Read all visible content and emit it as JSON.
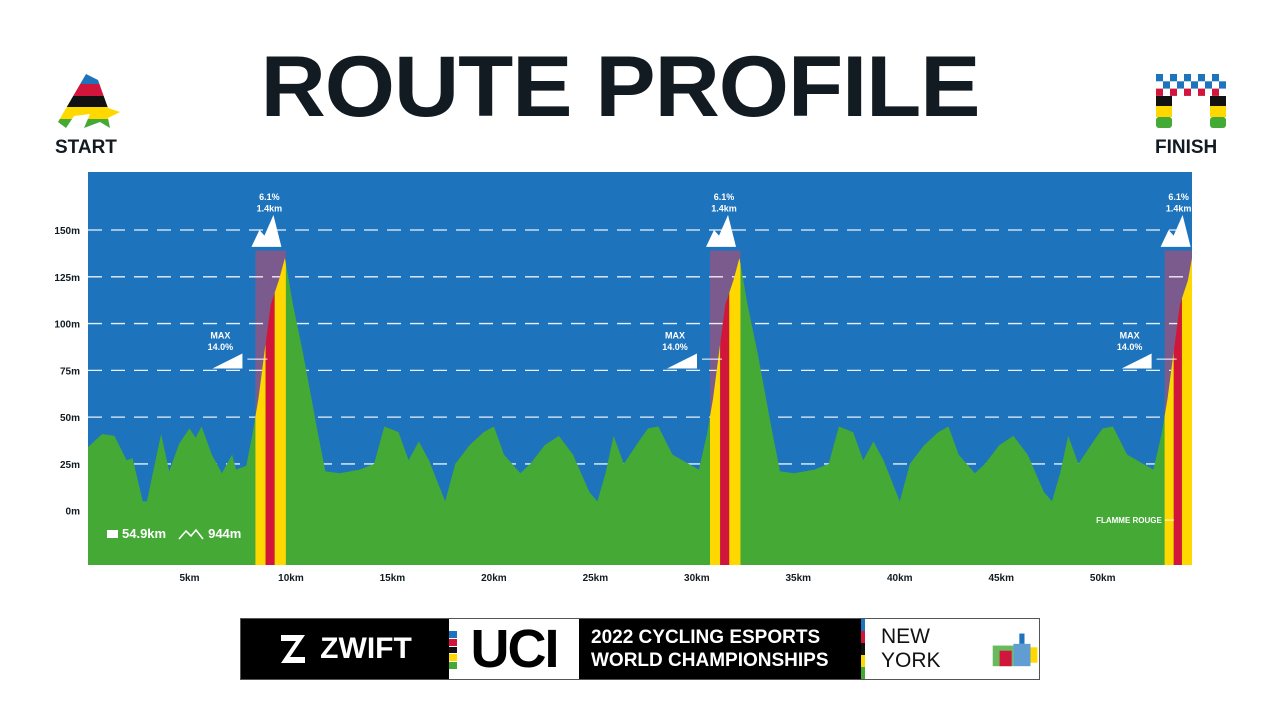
{
  "header": {
    "title": "ROUTE PROFILE",
    "start_label": "START",
    "finish_label": "FINISH"
  },
  "stats": {
    "distance": "54.9km",
    "elevation": "944m",
    "distance_icon": "route-distance-icon",
    "elevation_icon": "mountain-outline-icon"
  },
  "colors": {
    "sky": "#1e74bc",
    "terrain": "#44a935",
    "climb_yellow": "#ffd800",
    "climb_red": "#d2153a",
    "climb_zone": "#7b5b8e",
    "text": "#121b22"
  },
  "chart_data": {
    "type": "area",
    "xlabel": "",
    "ylabel": "",
    "xlim": [
      0,
      54.4
    ],
    "ylim": [
      -29,
      181
    ],
    "grid": true,
    "x_ticks": [
      5,
      10,
      15,
      20,
      25,
      30,
      35,
      40,
      45,
      50
    ],
    "x_tick_labels": [
      "5km",
      "10km",
      "15km",
      "20km",
      "25km",
      "30km",
      "35km",
      "40km",
      "45km",
      "50km"
    ],
    "y_ticks": [
      0,
      25,
      50,
      75,
      100,
      125,
      150
    ],
    "y_tick_labels": [
      "0m",
      "25m",
      "50m",
      "75m",
      "100m",
      "125m",
      "150m"
    ],
    "profile": [
      [
        0,
        34
      ],
      [
        0.3,
        37
      ],
      [
        0.7,
        41
      ],
      [
        1.3,
        40
      ],
      [
        1.9,
        27
      ],
      [
        2.2,
        28
      ],
      [
        2.7,
        5
      ],
      [
        2.9,
        5
      ],
      [
        3.6,
        41
      ],
      [
        4.0,
        21
      ],
      [
        4.5,
        36
      ],
      [
        5.0,
        44
      ],
      [
        5.3,
        39
      ],
      [
        5.6,
        45
      ],
      [
        6.1,
        30
      ],
      [
        6.6,
        20
      ],
      [
        7.1,
        30
      ],
      [
        7.3,
        22
      ],
      [
        7.8,
        24
      ],
      [
        8.1,
        41
      ],
      [
        8.4,
        60
      ],
      [
        9.0,
        110
      ],
      [
        9.4,
        123
      ],
      [
        9.7,
        135
      ],
      [
        10.1,
        110
      ],
      [
        10.6,
        84
      ],
      [
        11.3,
        43
      ],
      [
        11.7,
        21
      ],
      [
        12.4,
        20
      ],
      [
        13.4,
        22
      ],
      [
        14.1,
        25
      ],
      [
        14.6,
        45
      ],
      [
        15.3,
        42
      ],
      [
        15.8,
        27
      ],
      [
        16.3,
        37
      ],
      [
        16.8,
        27
      ],
      [
        17.6,
        5
      ],
      [
        18.1,
        25
      ],
      [
        18.8,
        35
      ],
      [
        19.5,
        42
      ],
      [
        20.0,
        45
      ],
      [
        20.5,
        30
      ],
      [
        21.3,
        20
      ],
      [
        21.8,
        25
      ],
      [
        22.5,
        35
      ],
      [
        23.2,
        40
      ],
      [
        23.9,
        30
      ],
      [
        24.7,
        10
      ],
      [
        25.1,
        5
      ],
      [
        25.5,
        20
      ],
      [
        25.9,
        40
      ],
      [
        26.4,
        25
      ],
      [
        27.2,
        38
      ],
      [
        27.6,
        44
      ],
      [
        28.1,
        45
      ],
      [
        28.8,
        30
      ],
      [
        29.6,
        25
      ],
      [
        30.1,
        22
      ],
      [
        30.5,
        41
      ],
      [
        30.8,
        60
      ],
      [
        31.4,
        110
      ],
      [
        31.8,
        123
      ],
      [
        32.1,
        135
      ],
      [
        32.5,
        110
      ],
      [
        33.0,
        84
      ],
      [
        33.7,
        43
      ],
      [
        34.1,
        21
      ],
      [
        34.8,
        20
      ],
      [
        35.8,
        22
      ],
      [
        36.5,
        25
      ],
      [
        37.0,
        45
      ],
      [
        37.7,
        42
      ],
      [
        38.2,
        27
      ],
      [
        38.7,
        37
      ],
      [
        39.2,
        27
      ],
      [
        40.0,
        5
      ],
      [
        40.5,
        25
      ],
      [
        41.2,
        35
      ],
      [
        41.9,
        42
      ],
      [
        42.4,
        45
      ],
      [
        42.9,
        30
      ],
      [
        43.7,
        20
      ],
      [
        44.2,
        25
      ],
      [
        44.9,
        35
      ],
      [
        45.6,
        40
      ],
      [
        46.3,
        30
      ],
      [
        47.1,
        10
      ],
      [
        47.5,
        5
      ],
      [
        47.9,
        20
      ],
      [
        48.3,
        40
      ],
      [
        48.8,
        25
      ],
      [
        49.6,
        38
      ],
      [
        50.0,
        44
      ],
      [
        50.5,
        45
      ],
      [
        51.2,
        30
      ],
      [
        52.0,
        25
      ],
      [
        52.5,
        22
      ],
      [
        52.9,
        41
      ],
      [
        53.2,
        60
      ],
      [
        53.8,
        110
      ],
      [
        54.2,
        123
      ],
      [
        54.4,
        135
      ]
    ],
    "climbs": [
      {
        "start_km": 8.25,
        "end_km": 9.75,
        "gradient": "6.1%",
        "length": "1.4km",
        "max_label": "MAX",
        "max_gradient": "14.0%",
        "max_at_m": 82
      },
      {
        "start_km": 30.65,
        "end_km": 32.15,
        "gradient": "6.1%",
        "length": "1.4km",
        "max_label": "MAX",
        "max_gradient": "14.0%",
        "max_at_m": 82
      },
      {
        "start_km": 53.05,
        "end_km": 54.4,
        "gradient": "6.1%",
        "length": "1.4km",
        "max_label": "MAX",
        "max_gradient": "14.0%",
        "max_at_m": 82
      }
    ],
    "annotations": [
      {
        "text": "FLAMME ROUGE",
        "km": 53.9,
        "m": -5
      }
    ]
  },
  "banner": {
    "zwift": "ZWIFT",
    "uci": "UCI",
    "line1": "2022 CYCLING ESPORTS",
    "line2": "WORLD CHAMPIONSHIPS",
    "city": "NEW YORK"
  }
}
